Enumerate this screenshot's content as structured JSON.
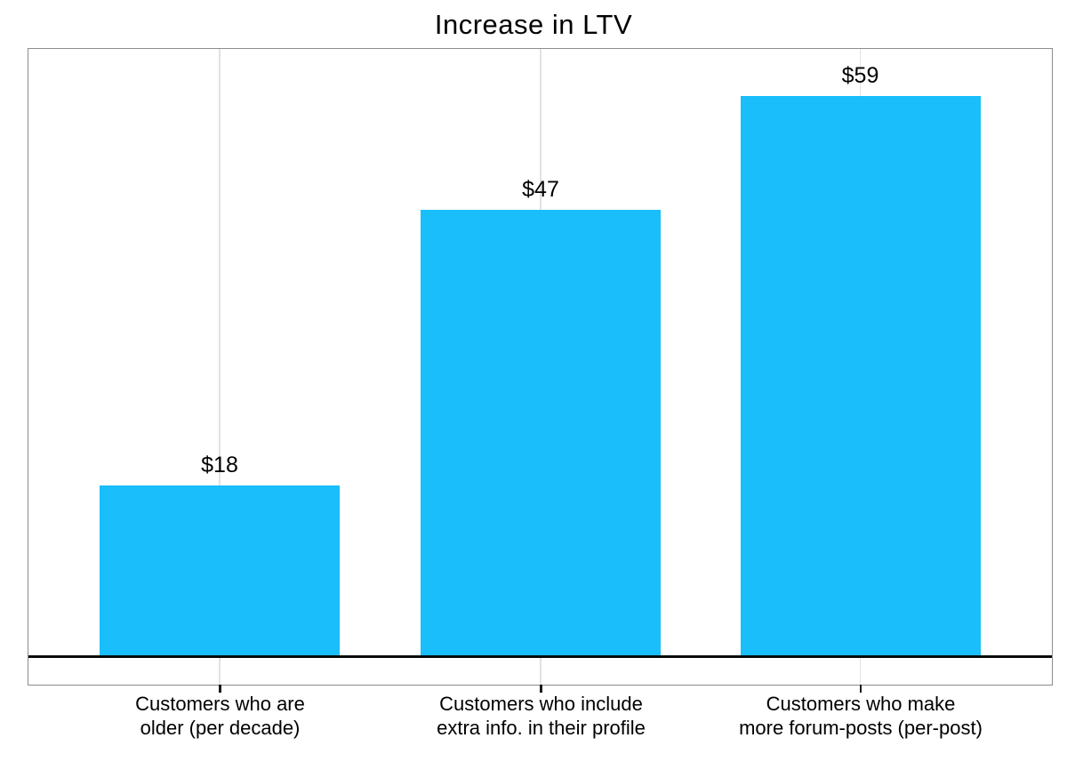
{
  "chart_data": {
    "type": "bar",
    "title": "Increase in LTV",
    "categories": [
      "Customers who are\nolder (per decade)",
      "Customers who include\nextra info. in their profile",
      "Customers who make\nmore forum-posts (per-post)"
    ],
    "values": [
      18,
      47,
      59
    ],
    "value_labels": [
      "$18",
      "$47",
      "$59"
    ],
    "xlabel": "",
    "ylabel": "",
    "ylim": [
      -2.9,
      64
    ],
    "bar_color": "#19befa",
    "grid": "vertical gridlines at bar centers, light gray",
    "baseline": "thick black line at y=0",
    "legend": "none"
  }
}
